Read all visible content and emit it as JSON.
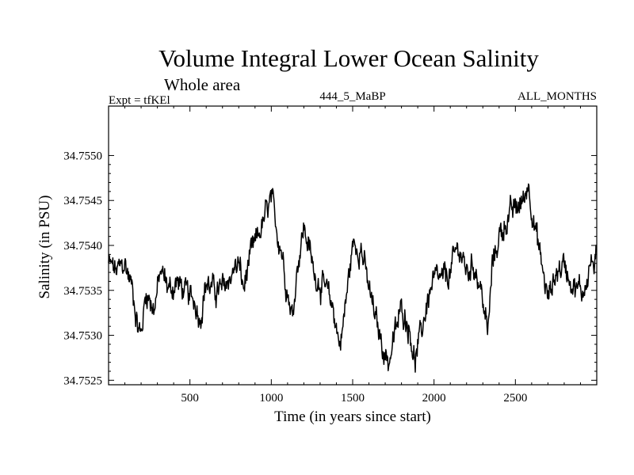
{
  "chart_data": {
    "type": "line",
    "title": "Volume Integral Lower Ocean Salinity",
    "subtitle": "Whole area",
    "header_left": "Expt = tfKEl",
    "header_center": "444_5_MaBP",
    "header_right": "ALL_MONTHS",
    "xlabel": "Time (in years since start)",
    "ylabel": "Salinity (in PSU)",
    "xlim": [
      0,
      3000
    ],
    "ylim": [
      34.75245,
      34.75555
    ],
    "xticks": [
      500,
      1000,
      1500,
      2000,
      2500
    ],
    "yticks": [
      34.7525,
      34.753,
      34.7535,
      34.754,
      34.7545,
      34.755
    ],
    "ytick_labels": [
      "34.7525",
      "34.7530",
      "34.7535",
      "34.7540",
      "34.7545",
      "34.7550"
    ],
    "grid": false,
    "line_color": "#000000",
    "series": [
      {
        "x": [
          0,
          50,
          100,
          150,
          180,
          200,
          230,
          280,
          320,
          380,
          420,
          460,
          500,
          530,
          560,
          600,
          640,
          700,
          760,
          800,
          830,
          860,
          900,
          940,
          980,
          1000,
          1030,
          1060,
          1100,
          1130,
          1160,
          1200,
          1230,
          1260,
          1300,
          1330,
          1380,
          1420,
          1440,
          1480,
          1500,
          1550,
          1600,
          1650,
          1700,
          1720,
          1760,
          1800,
          1830,
          1860,
          1880,
          1920,
          1960,
          2000,
          2050,
          2100,
          2150,
          2200,
          2250,
          2300,
          2330,
          2360,
          2400,
          2450,
          2500,
          2550,
          2580,
          2620,
          2650,
          2680,
          2700,
          2750,
          2800,
          2850,
          2880,
          2920,
          2960,
          3000
        ],
        "y": [
          34.7538,
          34.7537,
          34.7538,
          34.7535,
          34.7531,
          34.753,
          34.7535,
          34.7533,
          34.7537,
          34.7535,
          34.7536,
          34.7535,
          34.7534,
          34.7534,
          34.7532,
          34.7536,
          34.7535,
          34.7535,
          34.7537,
          34.7538,
          34.7535,
          34.7538,
          34.754,
          34.7542,
          34.7544,
          34.7545,
          34.7542,
          34.754,
          34.7535,
          34.7532,
          34.7538,
          34.7542,
          34.754,
          34.7537,
          34.7536,
          34.7535,
          34.7533,
          34.7529,
          34.7531,
          34.7537,
          34.754,
          34.754,
          34.7535,
          34.7531,
          34.7528,
          34.7527,
          34.753,
          34.7533,
          34.7532,
          34.753,
          34.7527,
          34.753,
          34.7534,
          34.7536,
          34.7536,
          34.7537,
          34.754,
          34.7537,
          34.7538,
          34.7534,
          34.753,
          34.7538,
          34.7541,
          34.7543,
          34.7544,
          34.7545,
          34.7547,
          34.7542,
          34.7539,
          34.7536,
          34.7534,
          34.7537,
          34.7538,
          34.7536,
          34.7535,
          34.7535,
          34.7538,
          34.7538
        ]
      }
    ]
  }
}
